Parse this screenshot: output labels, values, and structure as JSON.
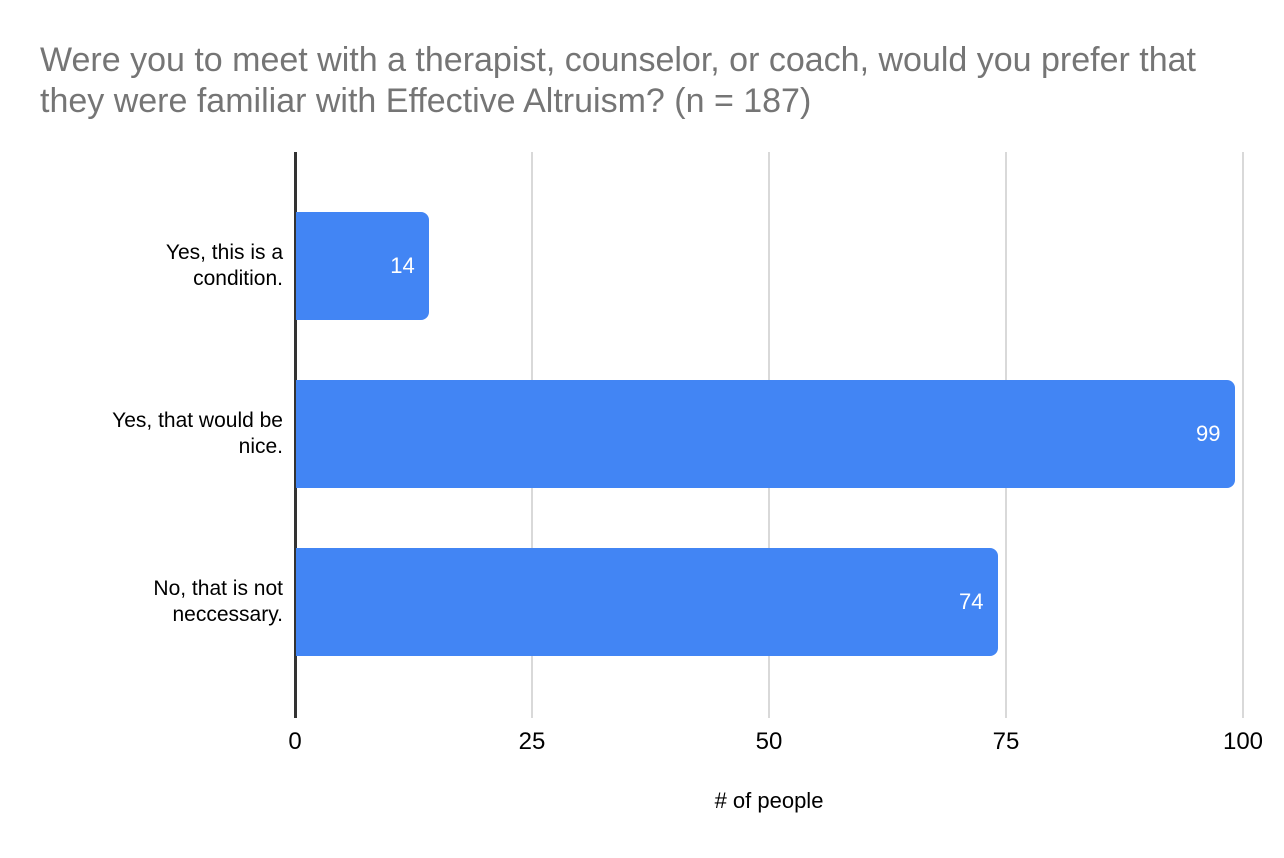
{
  "chart_data": {
    "type": "bar",
    "orientation": "horizontal",
    "title": "Were you to meet with a therapist, counselor, or coach, would you prefer that they were familiar with Effective Altruism? (n = 187)",
    "categories": [
      "Yes, this is a condition.",
      "Yes, that would be nice.",
      "No, that is not neccessary."
    ],
    "values": [
      14,
      99,
      74
    ],
    "xlabel": "# of people",
    "ylabel": "",
    "xlim": [
      0,
      100
    ],
    "xticks": [
      0,
      25,
      50,
      75,
      100
    ],
    "grid": true,
    "legend": "none",
    "colors": {
      "bar": "#4285f4",
      "value_label": "#ffffff",
      "title": "#757575",
      "gridline": "#d9d9d9",
      "axis_line": "#333333",
      "text": "#000000"
    }
  }
}
